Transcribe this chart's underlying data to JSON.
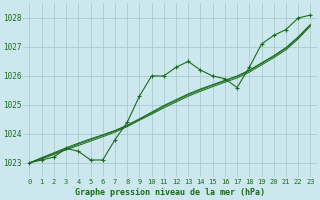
{
  "title": "Graphe pression niveau de la mer (hPa)",
  "bg_color": "#cce8ee",
  "grid_color": "#aacccc",
  "line_color": "#1a6b1a",
  "marker_color": "#1a6b1a",
  "xlim": [
    -0.5,
    23.5
  ],
  "ylim": [
    1022.5,
    1028.5
  ],
  "yticks": [
    1023,
    1024,
    1025,
    1026,
    1027,
    1028
  ],
  "xticks": [
    0,
    1,
    2,
    3,
    4,
    5,
    6,
    7,
    8,
    9,
    10,
    11,
    12,
    13,
    14,
    15,
    16,
    17,
    18,
    19,
    20,
    21,
    22,
    23
  ],
  "main_line": [
    1023.0,
    1023.1,
    1023.2,
    1023.5,
    1023.4,
    1023.1,
    1023.1,
    1023.8,
    1024.4,
    1025.3,
    1026.0,
    1026.0,
    1026.3,
    1026.5,
    1026.2,
    1026.0,
    1025.9,
    1025.6,
    1026.3,
    1027.1,
    1027.4,
    1027.6,
    1028.0,
    1028.1
  ],
  "smooth_line1": [
    1023.0,
    1023.18,
    1023.35,
    1023.52,
    1023.68,
    1023.83,
    1023.97,
    1024.12,
    1024.3,
    1024.52,
    1024.75,
    1024.98,
    1025.18,
    1025.38,
    1025.55,
    1025.7,
    1025.85,
    1026.0,
    1026.2,
    1026.45,
    1026.7,
    1026.98,
    1027.35,
    1027.78
  ],
  "smooth_line2": [
    1023.0,
    1023.16,
    1023.32,
    1023.49,
    1023.65,
    1023.8,
    1023.95,
    1024.1,
    1024.28,
    1024.5,
    1024.72,
    1024.95,
    1025.15,
    1025.35,
    1025.52,
    1025.68,
    1025.83,
    1025.98,
    1026.18,
    1026.43,
    1026.68,
    1026.95,
    1027.32,
    1027.76
  ],
  "smooth_line3": [
    1023.0,
    1023.14,
    1023.29,
    1023.45,
    1023.6,
    1023.75,
    1023.9,
    1024.06,
    1024.25,
    1024.47,
    1024.68,
    1024.9,
    1025.1,
    1025.3,
    1025.47,
    1025.63,
    1025.78,
    1025.93,
    1026.13,
    1026.38,
    1026.63,
    1026.9,
    1027.28,
    1027.72
  ]
}
